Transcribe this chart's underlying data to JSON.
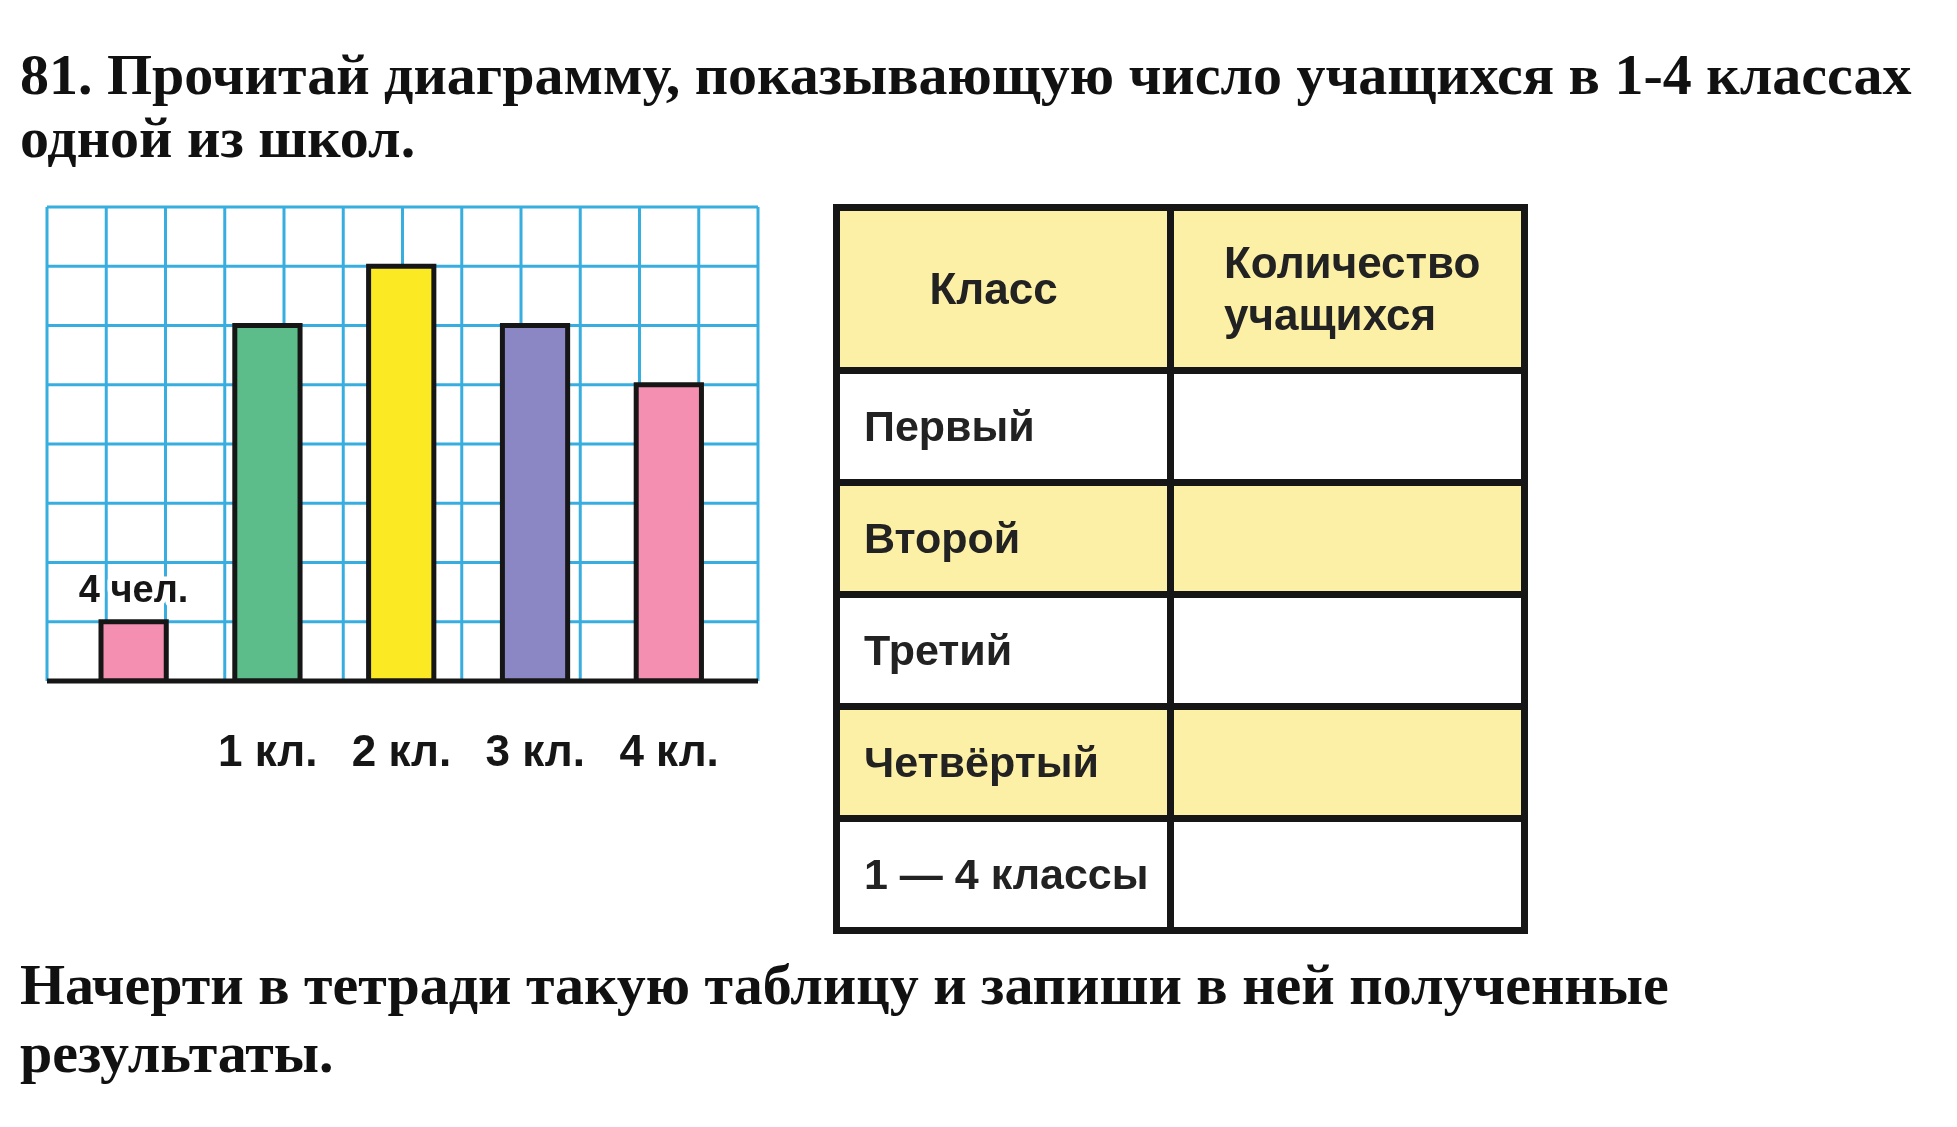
{
  "chart_data": [
    {
      "type": "bar",
      "title": "81. Прочитай диаграмму, показывающую число учащихся в 1-4 классах одной из школ.",
      "categories": [
        null,
        "1 кл.",
        "2 кл.",
        "3 кл.",
        "4 кл."
      ],
      "values": [
        4,
        24,
        28,
        24,
        20
      ],
      "colors": [
        "#f48fb1",
        "#5cbd8b",
        "#fbe923",
        "#8b87c4",
        "#f48fb1"
      ],
      "value_labels": [
        "4 чел.",
        null,
        null,
        null,
        null
      ],
      "ylim": [
        0,
        32
      ],
      "yticks": [
        {
          "value": 0,
          "label": null
        },
        {
          "value": 4,
          "label": null
        },
        {
          "value": 8,
          "label": null
        },
        {
          "value": 12,
          "label": null
        },
        {
          "value": 16,
          "label": null
        },
        {
          "value": 20,
          "label": null
        },
        {
          "value": 24,
          "label": null
        },
        {
          "value": 28,
          "label": null
        },
        {
          "value": 32,
          "label": null
        }
      ],
      "tick_labels": "x",
      "grid": true,
      "annotations": [
        "Начерти в тетради такую таблицу и запиши в ней полученные результаты."
      ]
    },
    {
      "type": "other",
      "annotations": [
        "Класс",
        "Количество учащихся",
        "Первый",
        "Второй",
        "Третий",
        "Четвёртый",
        "1 — 4 классы"
      ]
    }
  ]
}
